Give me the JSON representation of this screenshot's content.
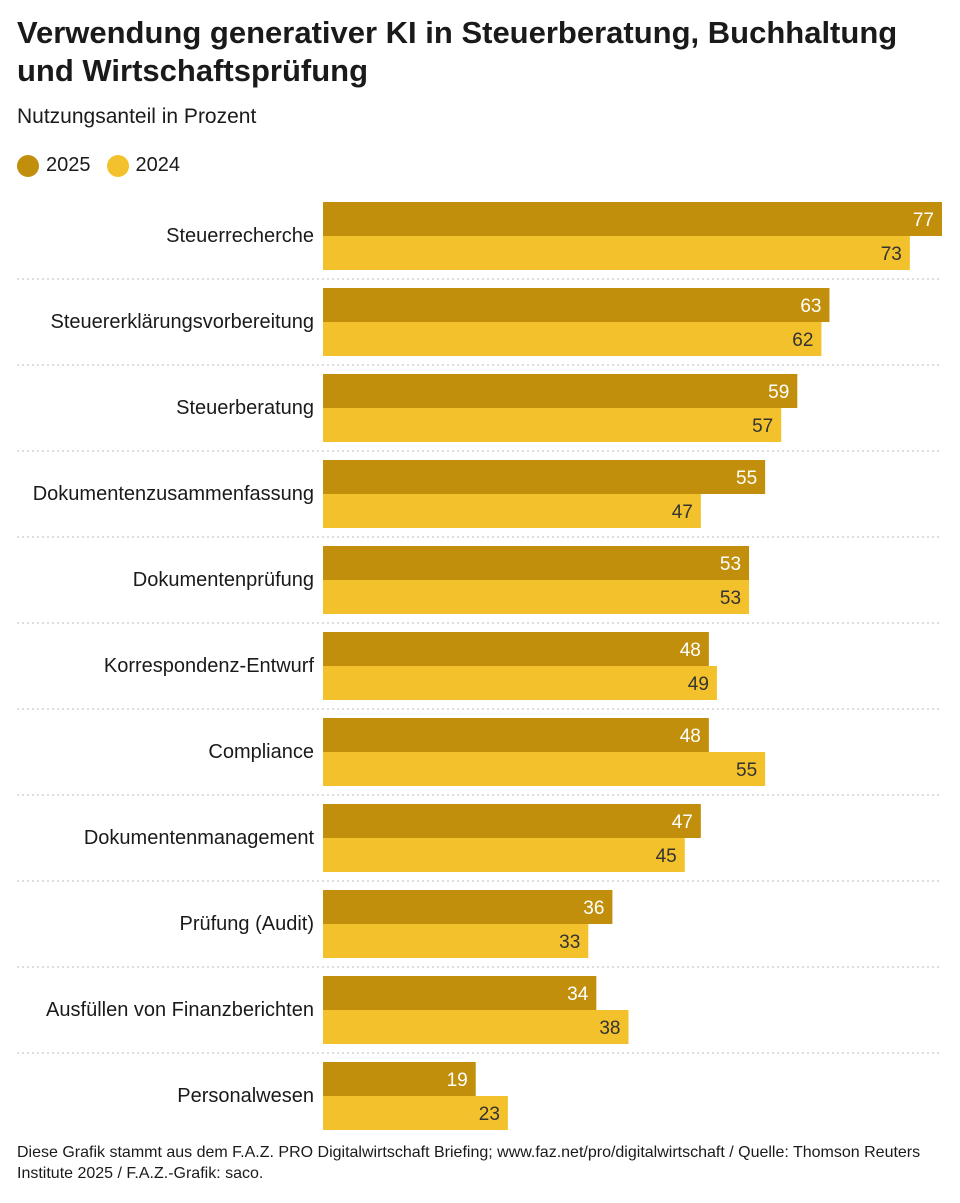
{
  "title": "Verwendung generativer KI in Steuerberatung, Buchhaltung und Wirtschaftsprüfung",
  "subtitle": "Nutzungsanteil in Prozent",
  "footnote": "Diese Grafik stammt aus dem F.A.Z. PRO Digitalwirtschaft Briefing; www.faz.net/pro/digitalwirtschaft  / Quelle: Thomson Reuters Institute 2025 / F.A.Z.-Grafik: saco.",
  "colors": {
    "series_2025": "#c18f0b",
    "series_2024": "#f3c12b",
    "label_2025": "#ffffff",
    "label_2024": "#333333",
    "separator": "#bbbbbb"
  },
  "chart_data": {
    "type": "bar",
    "orientation": "horizontal",
    "legend_position": "top-left",
    "grid": false,
    "xlim": [
      0,
      77
    ],
    "categories": [
      "Steuerrecherche",
      "Steuererklärungsvorbereitung",
      "Steuerberatung",
      "Dokumentenzusammenfassung",
      "Dokumentenprüfung",
      "Korrespondenz-Entwurf",
      "Compliance",
      "Dokumentenmanagement",
      "Prüfung (Audit)",
      "Ausfüllen von Finanzberichten",
      "Personalwesen"
    ],
    "series": [
      {
        "name": "2025",
        "values": [
          77,
          63,
          59,
          55,
          53,
          48,
          48,
          47,
          36,
          34,
          19
        ]
      },
      {
        "name": "2024",
        "values": [
          73,
          62,
          57,
          47,
          53,
          49,
          55,
          45,
          33,
          38,
          23
        ]
      }
    ]
  }
}
